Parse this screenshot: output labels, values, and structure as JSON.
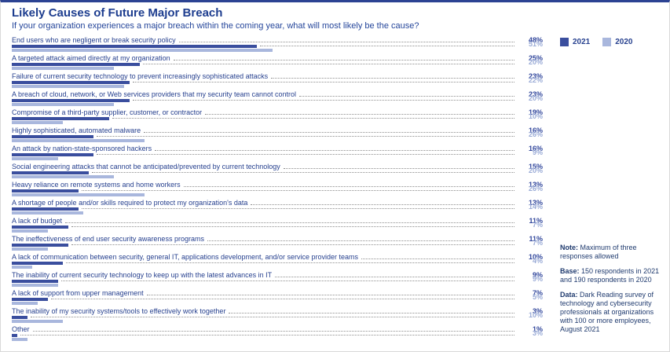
{
  "header": {
    "title": "Likely Causes of Future Major Breach",
    "subtitle": "If your organization experiences a major breach within the coming year, what will most likely be the cause?"
  },
  "chart_data": {
    "type": "bar",
    "orientation": "horizontal",
    "value_suffix": "%",
    "xlim": [
      0,
      100
    ],
    "legend_position": "top-right",
    "categories": [
      "End users who are negligent or break security policy",
      "A targeted attack aimed directly at my organization",
      "Failure of current security technology to prevent increasingly sophisticated attacks",
      "A breach of cloud, network, or Web services providers that my security team cannot control",
      "Compromise of a third-party supplier, customer, or contractor",
      "Highly sophisticated, automated malware",
      "An attack by nation-state-sponsored hackers",
      "Social engineering attacks that cannot be anticipated/prevented by current technology",
      "Heavy reliance on remote systems and home workers",
      "A shortage of people and/or skills required to protect my organization's data",
      "A lack of budget",
      "The ineffectiveness of end user security awareness programs",
      "A lack of communication between security, general IT, applications development, and/or service provider teams",
      "The inability of current security technology to keep up with the latest advances in IT",
      "A lack of support from upper management",
      "The inability of my security systems/tools to effectively work together",
      "Other"
    ],
    "series": [
      {
        "name": "2021",
        "color": "#3a4e9e",
        "values": [
          48,
          25,
          23,
          23,
          19,
          16,
          16,
          15,
          13,
          13,
          11,
          11,
          10,
          9,
          7,
          3,
          1
        ]
      },
      {
        "name": "2020",
        "color": "#a9b7dd",
        "values": [
          51,
          20,
          22,
          20,
          10,
          26,
          9,
          20,
          26,
          14,
          7,
          7,
          4,
          9,
          5,
          10,
          3
        ]
      }
    ]
  },
  "notes": [
    {
      "label": "Note:",
      "text": "Maximum of three responses allowed"
    },
    {
      "label": "Base:",
      "text": "150 respondents in 2021 and 190 respondents in 2020"
    },
    {
      "label": "Data:",
      "text": "Dark Reading survey of technology and cybersecurity professionals at organizations with 100 or more employees, August 2021"
    }
  ]
}
